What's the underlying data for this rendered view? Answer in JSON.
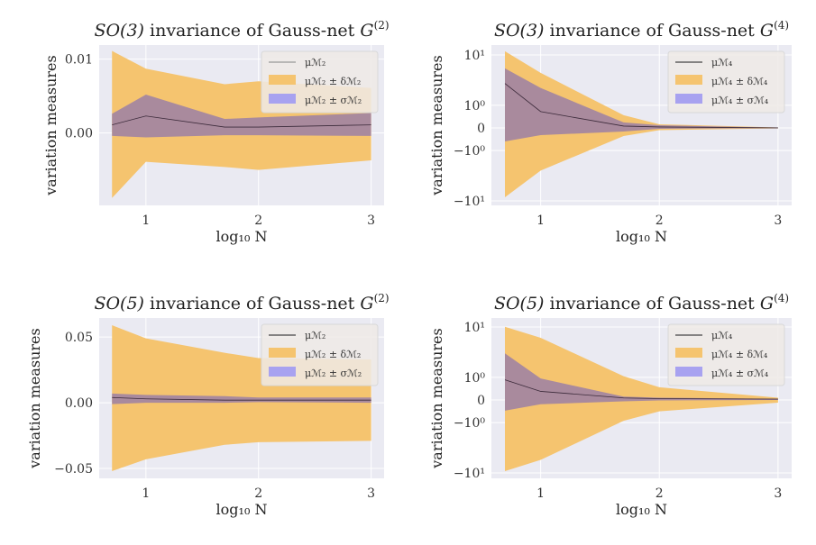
{
  "colors": {
    "background": "#eaeaf2",
    "grid": "#ffffff",
    "delta_band": "#f5c46f",
    "sigma_band": "#a98a9d",
    "sigma_legend": "#a8a2f0",
    "mean_line": "#3b2a3a"
  },
  "chart_data": [
    {
      "type": "area",
      "title": {
        "group": "SO(3)",
        "text": "invariance of Gauss-net",
        "symbol": "G",
        "sup": "(2)"
      },
      "xlabel": "log₁₀ N",
      "ylabel": "variation measures",
      "yscale": "linear",
      "xlim": [
        0.585,
        3.115
      ],
      "ylim": [
        -0.0098,
        0.0119
      ],
      "xticks": [
        {
          "v": 1,
          "label": "1"
        },
        {
          "v": 2,
          "label": "2"
        },
        {
          "v": 3,
          "label": "3"
        }
      ],
      "yticks": [
        {
          "v": 0.01,
          "label": "0.01"
        },
        {
          "v": 0.0,
          "label": "0.00"
        }
      ],
      "grid": true,
      "legend_position": "upper right",
      "legend": [
        "μℳ₂",
        "μℳ₂ ± δℳ₂",
        "μℳ₂ ± σℳ₂"
      ],
      "x": [
        0.699,
        1,
        1.699,
        2,
        3
      ],
      "mean": [
        0.0011,
        0.0023,
        0.0008,
        0.0008,
        0.0011
      ],
      "sigma_upper": [
        0.0026,
        0.0052,
        0.0019,
        0.0021,
        0.0027
      ],
      "sigma_lower": [
        -0.0004,
        -0.0006,
        -0.0003,
        -0.0003,
        -0.0004
      ],
      "delta_upper": [
        0.0111,
        0.0087,
        0.0066,
        0.007,
        0.0061
      ],
      "delta_lower": [
        -0.0088,
        -0.0039,
        -0.0046,
        -0.005,
        -0.0037
      ]
    },
    {
      "type": "area",
      "title": {
        "group": "SO(3)",
        "text": "invariance of Gauss-net",
        "symbol": "G",
        "sup": "(4)"
      },
      "xlabel": "log₁₀ N",
      "ylabel": "variation measures",
      "yscale": "symlog",
      "xlim": [
        0.585,
        3.115
      ],
      "ylim": [
        -12.3,
        15.7
      ],
      "xticks": [
        {
          "v": 1,
          "label": "1"
        },
        {
          "v": 2,
          "label": "2"
        },
        {
          "v": 3,
          "label": "3"
        }
      ],
      "yticks": [
        {
          "v": 10,
          "label": "10¹"
        },
        {
          "v": 1,
          "label": "10⁰"
        },
        {
          "v": 0,
          "label": "0"
        },
        {
          "v": -1,
          "label": "−10⁰"
        },
        {
          "v": -10,
          "label": "−10¹"
        }
      ],
      "grid": true,
      "legend_position": "upper right",
      "legend": [
        "μℳ₄",
        "μℳ₄ ± δℳ₄",
        "μℳ₄ ± σℳ₄"
      ],
      "x": [
        0.699,
        1,
        1.699,
        2,
        3
      ],
      "mean": [
        2.7,
        0.72,
        0.08,
        0.04,
        0.0
      ],
      "sigma_upper": [
        5.4,
        2.2,
        0.24,
        0.12,
        0.01
      ],
      "sigma_lower": [
        -0.6,
        -0.32,
        -0.16,
        -0.04,
        -0.01
      ],
      "delta_upper": [
        11.8,
        4.4,
        0.56,
        0.16,
        0.02
      ],
      "delta_lower": [
        -8.5,
        -2.5,
        -0.36,
        -0.1,
        -0.02
      ]
    },
    {
      "type": "area",
      "title": {
        "group": "SO(5)",
        "text": "invariance of Gauss-net",
        "symbol": "G",
        "sup": "(2)"
      },
      "xlabel": "log₁₀ N",
      "ylabel": "variation measures",
      "yscale": "linear",
      "xlim": [
        0.585,
        3.115
      ],
      "ylim": [
        -0.0575,
        0.0645
      ],
      "xticks": [
        {
          "v": 1,
          "label": "1"
        },
        {
          "v": 2,
          "label": "2"
        },
        {
          "v": 3,
          "label": "3"
        }
      ],
      "yticks": [
        {
          "v": 0.05,
          "label": "0.05"
        },
        {
          "v": 0.0,
          "label": "0.00"
        },
        {
          "v": -0.05,
          "label": "−0.05"
        }
      ],
      "grid": true,
      "legend_position": "upper right",
      "legend": [
        "μℳ₂",
        "μℳ₂ ± δℳ₂",
        "μℳ₂ ± σℳ₂"
      ],
      "x": [
        0.699,
        1,
        1.699,
        2,
        3
      ],
      "mean": [
        0.004,
        0.003,
        0.002,
        0.002,
        0.002
      ],
      "sigma_upper": [
        0.007,
        0.006,
        0.005,
        0.004,
        0.004
      ],
      "sigma_lower": [
        -0.001,
        0.0,
        0.0,
        0.0005,
        0.0
      ],
      "delta_upper": [
        0.059,
        0.049,
        0.038,
        0.034,
        0.033
      ],
      "delta_lower": [
        -0.052,
        -0.043,
        -0.032,
        -0.03,
        -0.029
      ]
    },
    {
      "type": "area",
      "title": {
        "group": "SO(5)",
        "text": "invariance of Gauss-net",
        "symbol": "G",
        "sup": "(4)"
      },
      "xlabel": "log₁₀ N",
      "ylabel": "variation measures",
      "yscale": "symlog",
      "xlim": [
        0.585,
        3.115
      ],
      "ylim": [
        -12.8,
        15.1
      ],
      "xticks": [
        {
          "v": 1,
          "label": "1"
        },
        {
          "v": 2,
          "label": "2"
        },
        {
          "v": 3,
          "label": "3"
        }
      ],
      "yticks": [
        {
          "v": 10,
          "label": "10¹"
        },
        {
          "v": 1,
          "label": "10⁰"
        },
        {
          "v": 0,
          "label": "0"
        },
        {
          "v": -1,
          "label": "−10⁰"
        },
        {
          "v": -10,
          "label": "−10¹"
        }
      ],
      "grid": true,
      "legend_position": "upper right",
      "legend": [
        "μℳ₄",
        "μℳ₄ ± δℳ₄",
        "μℳ₄ ± σℳ₄"
      ],
      "x": [
        0.699,
        1,
        1.699,
        2,
        3
      ],
      "mean": [
        0.89,
        0.38,
        0.09,
        0.06,
        0.04
      ],
      "sigma_upper": [
        3.0,
        0.95,
        0.15,
        0.1,
        0.05
      ],
      "sigma_lower": [
        -0.47,
        -0.19,
        -0.06,
        -0.02,
        0.0
      ],
      "delta_upper": [
        10.1,
        6.1,
        1.05,
        0.56,
        0.1
      ],
      "delta_lower": [
        -9.2,
        -5.5,
        -0.92,
        -0.5,
        -0.12
      ]
    }
  ]
}
